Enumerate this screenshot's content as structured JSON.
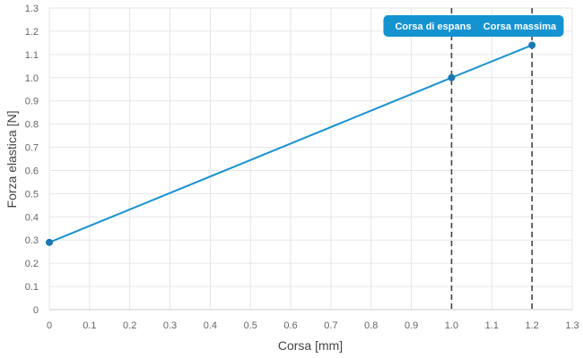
{
  "chart_data": {
    "type": "line",
    "xlabel": "Corsa [mm]",
    "ylabel": "Forza elastica [N]",
    "xlim": [
      0,
      1.3
    ],
    "ylim": [
      0,
      1.3
    ],
    "x_ticks": [
      "0",
      "0.1",
      "0.2",
      "0.3",
      "0.4",
      "0.5",
      "0.6",
      "0.7",
      "0.8",
      "0.9",
      "1.0",
      "1.1",
      "1.2",
      "1.3"
    ],
    "y_ticks": [
      "0",
      "0.1",
      "0.2",
      "0.3",
      "0.4",
      "0.5",
      "0.6",
      "0.7",
      "0.8",
      "0.9",
      "1.0",
      "1.1",
      "1.2",
      "1.3"
    ],
    "grid": true,
    "series": [
      {
        "color": "#1a91d1",
        "x": [
          0,
          1.0,
          1.2
        ],
        "y": [
          0.29,
          1.0,
          1.14
        ]
      }
    ],
    "annotations": [
      {
        "x": 1.0,
        "label": "Corsa di espans",
        "style": "dashed-vertical"
      },
      {
        "x": 1.2,
        "label": "Corsa massima",
        "style": "dashed-vertical"
      }
    ],
    "annotation_color": "#1593d1"
  }
}
